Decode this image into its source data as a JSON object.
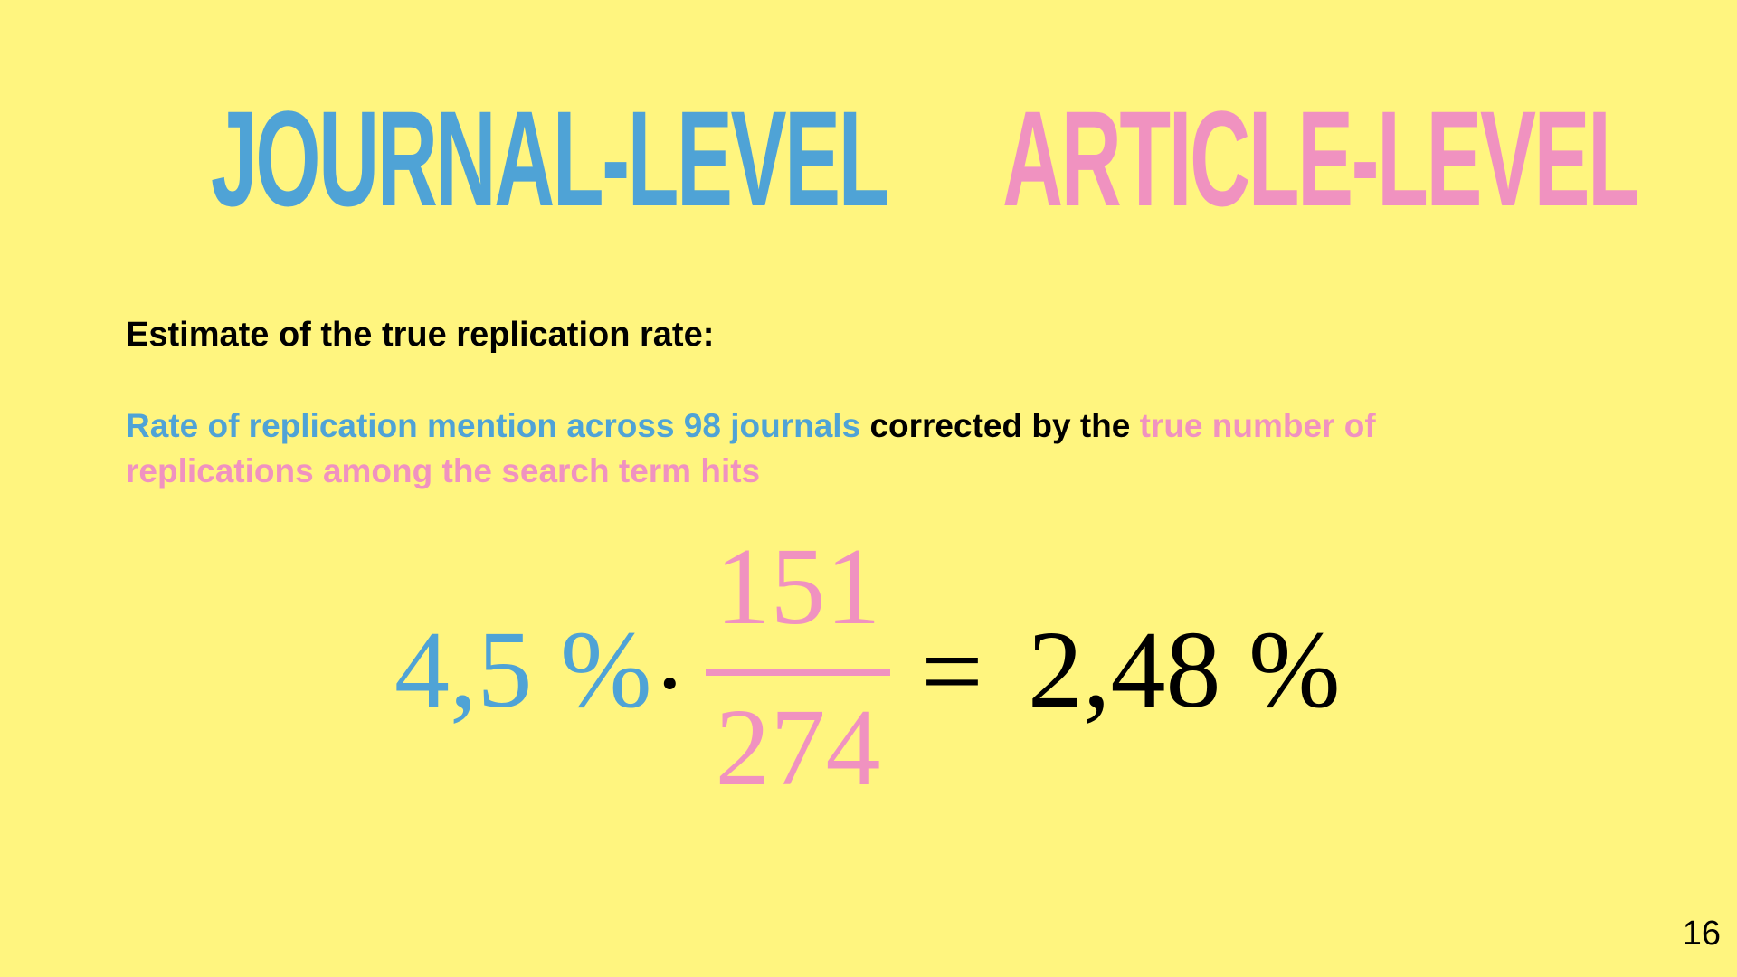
{
  "slide": {
    "background_color": "#FFF57F",
    "page_number": "16"
  },
  "headings": {
    "journal_level": "JOURNAL-LEVEL",
    "article_level": "ARTICLE-LEVEL",
    "journal_color": "#4FA3D6",
    "article_color": "#F092C0"
  },
  "subtitle": "Estimate of the true replication rate:",
  "description": {
    "part_blue": "Rate of replication mention across 98 journals",
    "part_black": " corrected by the ",
    "part_pink": "true number of replications among the search term hits"
  },
  "formula": {
    "lhs": "4,5 %",
    "operator": "·",
    "numerator": "151",
    "denominator": "274",
    "equals": "=",
    "result": "2,48 %"
  }
}
